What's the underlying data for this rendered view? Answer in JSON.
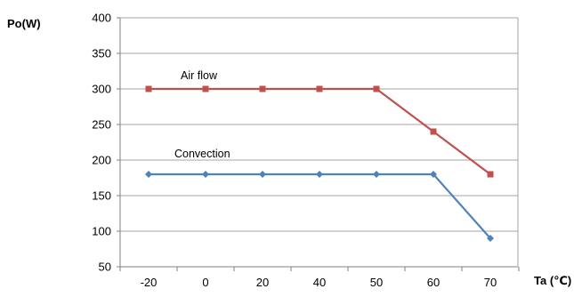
{
  "chart_data": {
    "type": "line",
    "x": [
      "-20",
      "0",
      "20",
      "40",
      "50",
      "60",
      "70"
    ],
    "series": [
      {
        "name": "Air flow",
        "values": [
          300,
          300,
          300,
          300,
          300,
          240,
          180
        ],
        "color": "#c0504d",
        "marker": "square"
      },
      {
        "name": "Convection",
        "values": [
          180,
          180,
          180,
          180,
          180,
          180,
          90
        ],
        "color": "#4f81bd",
        "marker": "diamond"
      }
    ],
    "ylabel": "Po(W)",
    "xlabel": "Ta (℃)",
    "ylim": [
      50,
      400
    ],
    "yticks": [
      50,
      100,
      150,
      200,
      250,
      300,
      350,
      400
    ],
    "grid": {
      "horizontal": true,
      "vertical": false,
      "color": "#a6a6a6"
    },
    "legend": "inline labels"
  }
}
